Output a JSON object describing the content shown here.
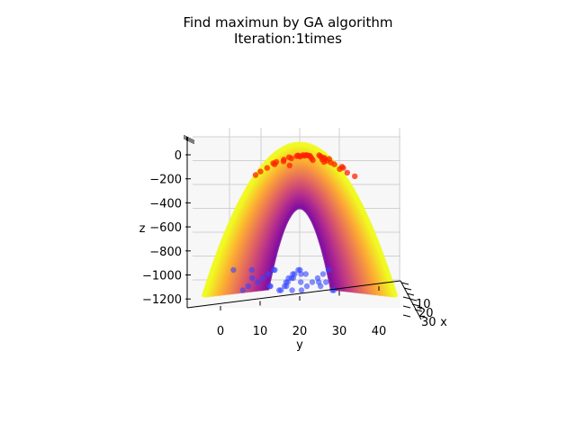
{
  "chart_data": {
    "type": "scatter",
    "subtype": "3d-surface-with-scatter",
    "title": "Find maximun by GA algorithm",
    "subtitle": "Iteration:1times",
    "xlabel": "x",
    "ylabel": "y",
    "zlabel": "z",
    "x_ticks": [
      "10",
      "20",
      "30"
    ],
    "y_ticks": [
      "0",
      "10",
      "20",
      "30",
      "40"
    ],
    "z_ticks": [
      "0",
      "−200",
      "−400",
      "−600",
      "−800",
      "−1000",
      "−1200"
    ],
    "xlim": [
      0,
      30
    ],
    "ylim": [
      -5,
      45
    ],
    "zlim": [
      -1250,
      100
    ],
    "surface": {
      "function": "paraboloid",
      "peak_z": 0,
      "colormap": "plasma",
      "colors": [
        "#0d0887",
        "#6a00a8",
        "#b12a90",
        "#e16462",
        "#fca636",
        "#f0f921"
      ]
    },
    "population_color": "#ff2200",
    "projection_color": "#3344ff",
    "population_y": [
      10,
      12,
      13,
      15,
      16,
      17,
      18,
      19,
      20,
      20,
      21,
      21,
      22,
      22,
      23,
      23,
      24,
      24,
      25,
      25,
      26,
      27,
      28,
      29,
      30,
      31,
      32,
      33,
      14,
      26,
      19,
      23,
      17,
      29,
      21,
      25,
      11,
      31,
      15,
      27
    ],
    "population_z": [
      -170,
      -110,
      -80,
      -60,
      -40,
      -30,
      -20,
      -12,
      -8,
      -5,
      -3,
      -10,
      -2,
      -15,
      -6,
      -30,
      -4,
      -45,
      -12,
      -60,
      -20,
      -35,
      -50,
      -80,
      -100,
      -120,
      -150,
      -180,
      -70,
      -25,
      -15,
      -8,
      -90,
      -65,
      -2,
      -40,
      -140,
      -110,
      -55,
      -35
    ]
  }
}
